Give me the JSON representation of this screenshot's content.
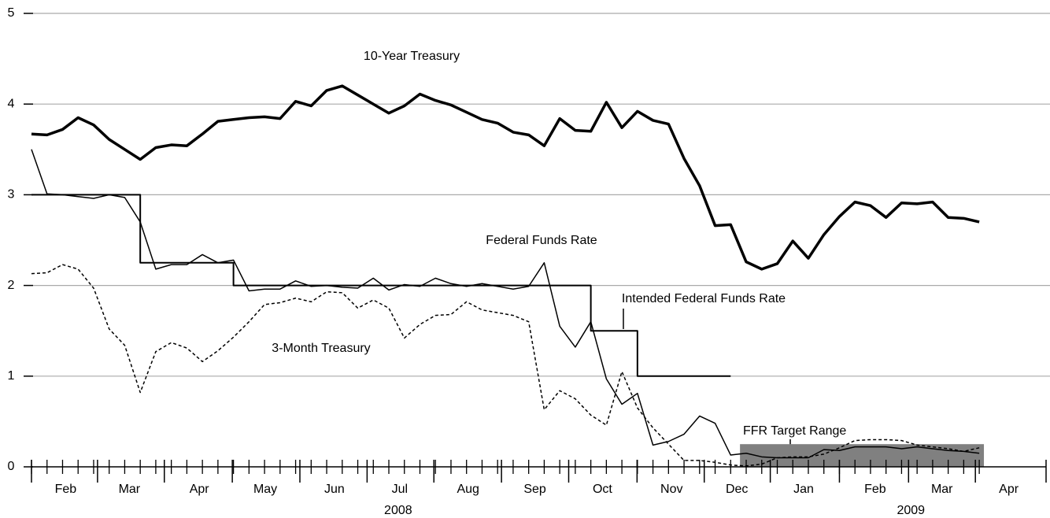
{
  "chart_data": {
    "type": "line",
    "x": [
      0,
      1,
      2,
      3,
      4,
      5,
      6,
      7,
      8,
      9,
      10,
      11,
      12,
      13,
      14,
      15,
      16,
      17,
      18,
      19,
      20,
      21,
      22,
      23,
      24,
      25,
      26,
      27,
      28,
      29,
      30,
      31,
      32,
      33,
      34,
      35,
      36,
      37,
      38,
      39,
      40,
      41,
      42,
      43,
      44,
      45,
      46,
      47,
      48,
      49,
      50,
      51,
      52,
      53,
      54,
      55,
      56,
      57,
      58,
      59,
      60,
      61
    ],
    "xlim": [
      0,
      65.3
    ],
    "xticks": [
      {
        "value": 2.2,
        "label": "Feb"
      },
      {
        "value": 6.3,
        "label": "Mar"
      },
      {
        "value": 10.8,
        "label": "Apr"
      },
      {
        "value": 15.05,
        "label": "May"
      },
      {
        "value": 19.5,
        "label": "Jun"
      },
      {
        "value": 23.7,
        "label": "Jul"
      },
      {
        "value": 28.1,
        "label": "Aug"
      },
      {
        "value": 32.4,
        "label": "Sep"
      },
      {
        "value": 36.75,
        "label": "Oct"
      },
      {
        "value": 41.2,
        "label": "Nov"
      },
      {
        "value": 45.4,
        "label": "Dec"
      },
      {
        "value": 49.7,
        "label": "Jan"
      },
      {
        "value": 54.3,
        "label": "Feb"
      },
      {
        "value": 58.6,
        "label": "Mar"
      },
      {
        "value": 62.9,
        "label": "Apr"
      }
    ],
    "year_ticks": [
      {
        "value": 23.6,
        "label": "2008"
      },
      {
        "value": 56.6,
        "label": "2009"
      }
    ],
    "ylim": [
      0,
      5
    ],
    "yticks": [
      0,
      1,
      2,
      3,
      4,
      5
    ],
    "grid": true,
    "series": [
      {
        "name": "10-Year Treasury",
        "color": "#000000",
        "line_style": "bold",
        "values": [
          3.67,
          3.66,
          3.72,
          3.85,
          3.77,
          3.61,
          3.5,
          3.39,
          3.52,
          3.55,
          3.54,
          3.67,
          3.81,
          3.83,
          3.85,
          3.86,
          3.84,
          4.03,
          3.98,
          4.15,
          4.2,
          4.1,
          4.0,
          3.9,
          3.98,
          4.11,
          4.04,
          3.99,
          3.91,
          3.83,
          3.79,
          3.69,
          3.66,
          3.54,
          3.84,
          3.71,
          3.7,
          4.02,
          3.74,
          3.92,
          3.82,
          3.78,
          3.4,
          3.1,
          2.66,
          2.67,
          2.26,
          2.18,
          2.24,
          2.49,
          2.3,
          2.56,
          2.76,
          2.92,
          2.88,
          2.75,
          2.91,
          2.9,
          2.92,
          2.75,
          2.74,
          2.7
        ]
      },
      {
        "name": "Federal Funds Rate",
        "color": "#000000",
        "line_style": "solid",
        "values": [
          3.5,
          3.01,
          3.0,
          2.98,
          2.96,
          3.0,
          2.97,
          2.7,
          2.18,
          2.23,
          2.23,
          2.34,
          2.25,
          2.28,
          1.94,
          1.96,
          1.96,
          2.05,
          1.99,
          2.0,
          1.98,
          1.97,
          2.08,
          1.95,
          2.01,
          1.99,
          2.08,
          2.02,
          1.99,
          2.02,
          1.99,
          1.96,
          1.99,
          2.25,
          1.55,
          1.32,
          1.6,
          0.97,
          0.69,
          0.81,
          0.24,
          0.28,
          0.36,
          0.56,
          0.48,
          0.13,
          0.15,
          0.11,
          0.1,
          0.1,
          0.1,
          0.19,
          0.18,
          0.22,
          0.22,
          0.22,
          0.2,
          0.22,
          0.2,
          0.18,
          0.17,
          0.15
        ]
      },
      {
        "name": "3-Month Treasury",
        "color": "#000000",
        "line_style": "dashed",
        "values": [
          2.13,
          2.14,
          2.23,
          2.18,
          1.97,
          1.52,
          1.34,
          0.82,
          1.27,
          1.37,
          1.31,
          1.16,
          1.28,
          1.43,
          1.6,
          1.79,
          1.81,
          1.86,
          1.82,
          1.93,
          1.92,
          1.75,
          1.84,
          1.75,
          1.42,
          1.57,
          1.67,
          1.68,
          1.82,
          1.73,
          1.7,
          1.67,
          1.6,
          0.63,
          0.84,
          0.75,
          0.57,
          0.46,
          1.05,
          0.65,
          0.43,
          0.25,
          0.07,
          0.07,
          0.05,
          0.02,
          0.01,
          0.03,
          0.1,
          0.11,
          0.11,
          0.14,
          0.21,
          0.29,
          0.3,
          0.3,
          0.29,
          0.24,
          0.22,
          0.2,
          0.17,
          0.21
        ]
      },
      {
        "name": "Intended Federal Funds Rate",
        "color": "#000000",
        "line_style": "step",
        "values": [
          3,
          3,
          3,
          3,
          3,
          3,
          3,
          2.25,
          2.25,
          2.25,
          2.25,
          2.25,
          2.25,
          2,
          2,
          2,
          2,
          2,
          2,
          2,
          2,
          2,
          2,
          2,
          2,
          2,
          2,
          2,
          2,
          2,
          2,
          2,
          2,
          2,
          2,
          2,
          1.5,
          1.5,
          1.5,
          1,
          1,
          1,
          1,
          1,
          1,
          1,
          null,
          null,
          null,
          null,
          null,
          null,
          null,
          null,
          null,
          null,
          null,
          null,
          null,
          null,
          null,
          null
        ]
      }
    ],
    "target_range": {
      "label": "FFR Target Range",
      "x": [
        45.6,
        61.3
      ],
      "y": [
        0,
        0.25
      ],
      "color": "#808080"
    }
  }
}
